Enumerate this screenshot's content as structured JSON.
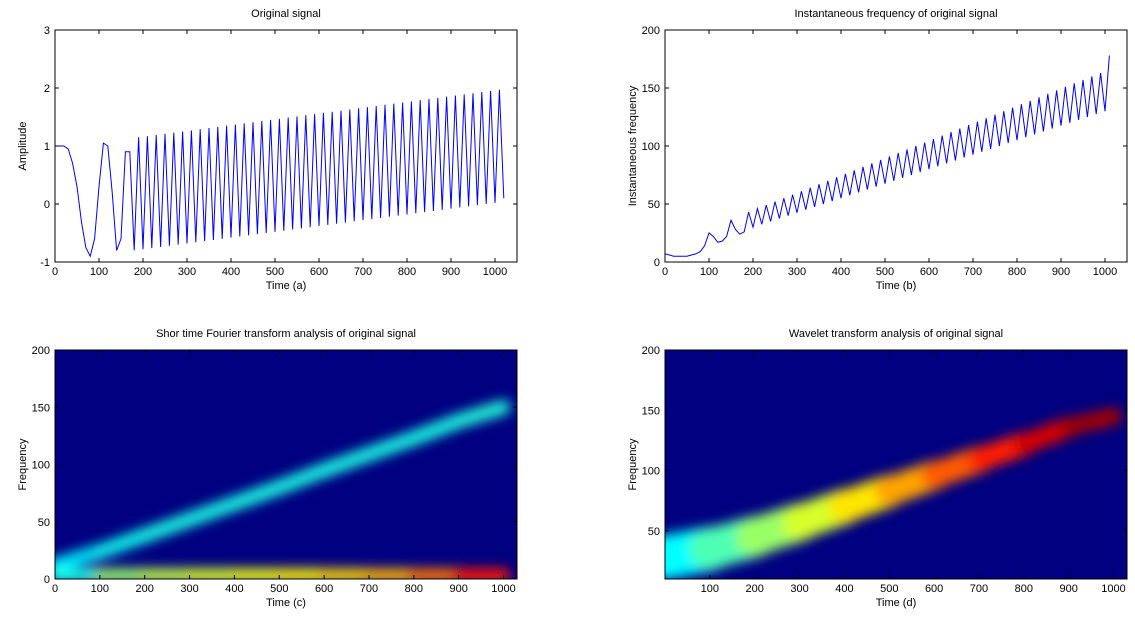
{
  "chart_data": [
    {
      "type": "line",
      "title": "Original signal",
      "xlabel": "Time (a)",
      "ylabel": "Amplitude",
      "color": "#0000ff",
      "xlim": [
        0,
        1050
      ],
      "ylim": [
        -1,
        3
      ],
      "xticks": [
        0,
        100,
        200,
        300,
        400,
        500,
        600,
        700,
        800,
        900,
        1000
      ],
      "yticks": [
        -1,
        0,
        1,
        2,
        3
      ],
      "x": [
        0,
        10,
        20,
        30,
        40,
        50,
        60,
        70,
        80,
        90,
        100,
        110,
        120,
        130,
        140,
        150,
        160,
        170,
        180,
        190,
        200,
        210,
        220,
        230,
        240,
        250,
        260,
        270,
        280,
        290,
        300,
        310,
        320,
        330,
        340,
        350,
        360,
        370,
        380,
        390,
        400,
        410,
        420,
        430,
        440,
        450,
        460,
        470,
        480,
        490,
        500,
        510,
        520,
        530,
        540,
        550,
        560,
        570,
        580,
        590,
        600,
        610,
        620,
        630,
        640,
        650,
        660,
        670,
        680,
        690,
        700,
        710,
        720,
        730,
        740,
        750,
        760,
        770,
        780,
        790,
        800,
        810,
        820,
        830,
        840,
        850,
        860,
        870,
        880,
        890,
        900,
        910,
        920,
        930,
        940,
        950,
        960,
        970,
        980,
        990,
        1000,
        1010,
        1020
      ],
      "values": [
        1,
        1,
        1,
        0.95,
        0.7,
        0.3,
        -0.3,
        -0.75,
        -0.9,
        -0.6,
        0.3,
        1.05,
        1.0,
        0.2,
        -0.8,
        -0.6,
        0.9,
        0.9,
        -0.8,
        1.15,
        -0.78,
        1.17,
        -0.76,
        1.19,
        -0.74,
        1.21,
        -0.72,
        1.23,
        -0.7,
        1.25,
        -0.68,
        1.27,
        -0.66,
        1.29,
        -0.64,
        1.31,
        -0.62,
        1.33,
        -0.6,
        1.35,
        -0.58,
        1.37,
        -0.56,
        1.39,
        -0.54,
        1.41,
        -0.52,
        1.43,
        -0.5,
        1.45,
        -0.48,
        1.47,
        -0.46,
        1.49,
        -0.44,
        1.51,
        -0.42,
        1.53,
        -0.4,
        1.55,
        -0.38,
        1.57,
        -0.36,
        1.59,
        -0.34,
        1.61,
        -0.32,
        1.63,
        -0.3,
        1.65,
        -0.28,
        1.67,
        -0.26,
        1.69,
        -0.24,
        1.71,
        -0.22,
        1.73,
        -0.2,
        1.75,
        -0.18,
        1.77,
        -0.16,
        1.79,
        -0.14,
        1.81,
        -0.12,
        1.83,
        -0.1,
        1.85,
        -0.08,
        1.87,
        -0.06,
        1.89,
        -0.04,
        1.91,
        -0.02,
        1.93,
        0,
        1.95,
        0.02,
        1.97,
        0.1
      ]
    },
    {
      "type": "line",
      "title": "Instantaneous frequency of original signal",
      "xlabel": "Time (b)",
      "ylabel": "Instantaneous frequency",
      "color": "#0000ff",
      "xlim": [
        0,
        1050
      ],
      "ylim": [
        0,
        200
      ],
      "xticks": [
        0,
        100,
        200,
        300,
        400,
        500,
        600,
        700,
        800,
        900,
        1000
      ],
      "yticks": [
        0,
        50,
        100,
        150,
        200
      ],
      "x": [
        0,
        10,
        20,
        30,
        40,
        50,
        60,
        70,
        80,
        90,
        100,
        110,
        120,
        130,
        140,
        150,
        160,
        170,
        180,
        190,
        200,
        210,
        220,
        230,
        240,
        250,
        260,
        270,
        280,
        290,
        300,
        310,
        320,
        330,
        340,
        350,
        360,
        370,
        380,
        390,
        400,
        410,
        420,
        430,
        440,
        450,
        460,
        470,
        480,
        490,
        500,
        510,
        520,
        530,
        540,
        550,
        560,
        570,
        580,
        590,
        600,
        610,
        620,
        630,
        640,
        650,
        660,
        670,
        680,
        690,
        700,
        710,
        720,
        730,
        740,
        750,
        760,
        770,
        780,
        790,
        800,
        810,
        820,
        830,
        840,
        850,
        860,
        870,
        880,
        890,
        900,
        910,
        920,
        930,
        940,
        950,
        960,
        970,
        980,
        990,
        1000,
        1010
      ],
      "values": [
        7,
        6,
        5,
        5,
        5,
        5,
        6,
        7,
        9,
        14,
        25,
        22,
        17,
        18,
        22,
        36,
        28,
        24,
        26,
        43,
        30,
        46,
        32.5,
        49,
        35,
        52,
        37.5,
        55,
        40,
        58,
        42.5,
        61,
        45,
        64,
        47.5,
        67,
        50,
        70,
        52.5,
        73,
        55,
        76,
        57.5,
        79,
        60,
        82,
        62.5,
        85,
        65,
        88,
        67.5,
        91,
        70,
        94,
        72.5,
        97,
        75,
        100,
        77.5,
        103,
        80,
        106,
        82.5,
        109,
        85,
        112,
        87.5,
        115,
        90,
        118,
        92.5,
        121,
        95,
        124,
        97.5,
        127,
        100,
        130,
        102.5,
        133,
        105,
        136,
        107.5,
        139,
        110,
        142,
        112.5,
        145,
        115,
        148,
        117.5,
        151,
        120,
        154,
        122.5,
        157,
        125,
        160,
        127.5,
        163,
        130,
        178
      ]
    },
    {
      "type": "heatmap",
      "title": "Shor time Fourier transform analysis of original signal",
      "xlabel": "Time (c)",
      "ylabel": "Frequency",
      "colormap": "jet",
      "xlim": [
        0,
        1030
      ],
      "ylim": [
        0,
        200
      ],
      "xticks": [
        0,
        100,
        200,
        300,
        400,
        500,
        600,
        700,
        800,
        900,
        1000
      ],
      "yticks": [
        0,
        50,
        100,
        150,
        200
      ],
      "ridges": [
        {
          "x": [
            0,
            100,
            200,
            300,
            400,
            500,
            600,
            700,
            800,
            900,
            1000
          ],
          "values": [
            12,
            24,
            38,
            52,
            66,
            80,
            95,
            109,
            123,
            138,
            150
          ],
          "intensity": [
            0.35,
            0.38,
            0.4,
            0.4,
            0.4,
            0.4,
            0.4,
            0.4,
            0.4,
            0.4,
            0.42
          ]
        },
        {
          "x": [
            0,
            100,
            200,
            300,
            400,
            500,
            600,
            700,
            800,
            900,
            1000
          ],
          "values": [
            3,
            3,
            3,
            3,
            3,
            3,
            3,
            3,
            3,
            3,
            3
          ],
          "intensity": [
            0.3,
            0.5,
            0.55,
            0.58,
            0.6,
            0.62,
            0.65,
            0.68,
            0.72,
            0.8,
            0.9
          ]
        }
      ]
    },
    {
      "type": "heatmap",
      "title": "Wavelet transform analysis of original signal",
      "xlabel": "Time (d)",
      "ylabel": "Frequency",
      "colormap": "jet",
      "xlim": [
        0,
        1030
      ],
      "ylim": [
        10,
        200
      ],
      "xticks": [
        100,
        200,
        300,
        400,
        500,
        600,
        700,
        800,
        900,
        1000
      ],
      "yticks": [
        50,
        100,
        150,
        200
      ],
      "ridges": [
        {
          "x": [
            0,
            100,
            200,
            300,
            400,
            500,
            600,
            700,
            800,
            900,
            1000
          ],
          "values": [
            28,
            35,
            45,
            57,
            70,
            83,
            96,
            109,
            122,
            136,
            145
          ],
          "intensity": [
            0.35,
            0.4,
            0.5,
            0.55,
            0.62,
            0.68,
            0.75,
            0.82,
            0.88,
            0.95,
            0.98
          ]
        }
      ]
    }
  ]
}
